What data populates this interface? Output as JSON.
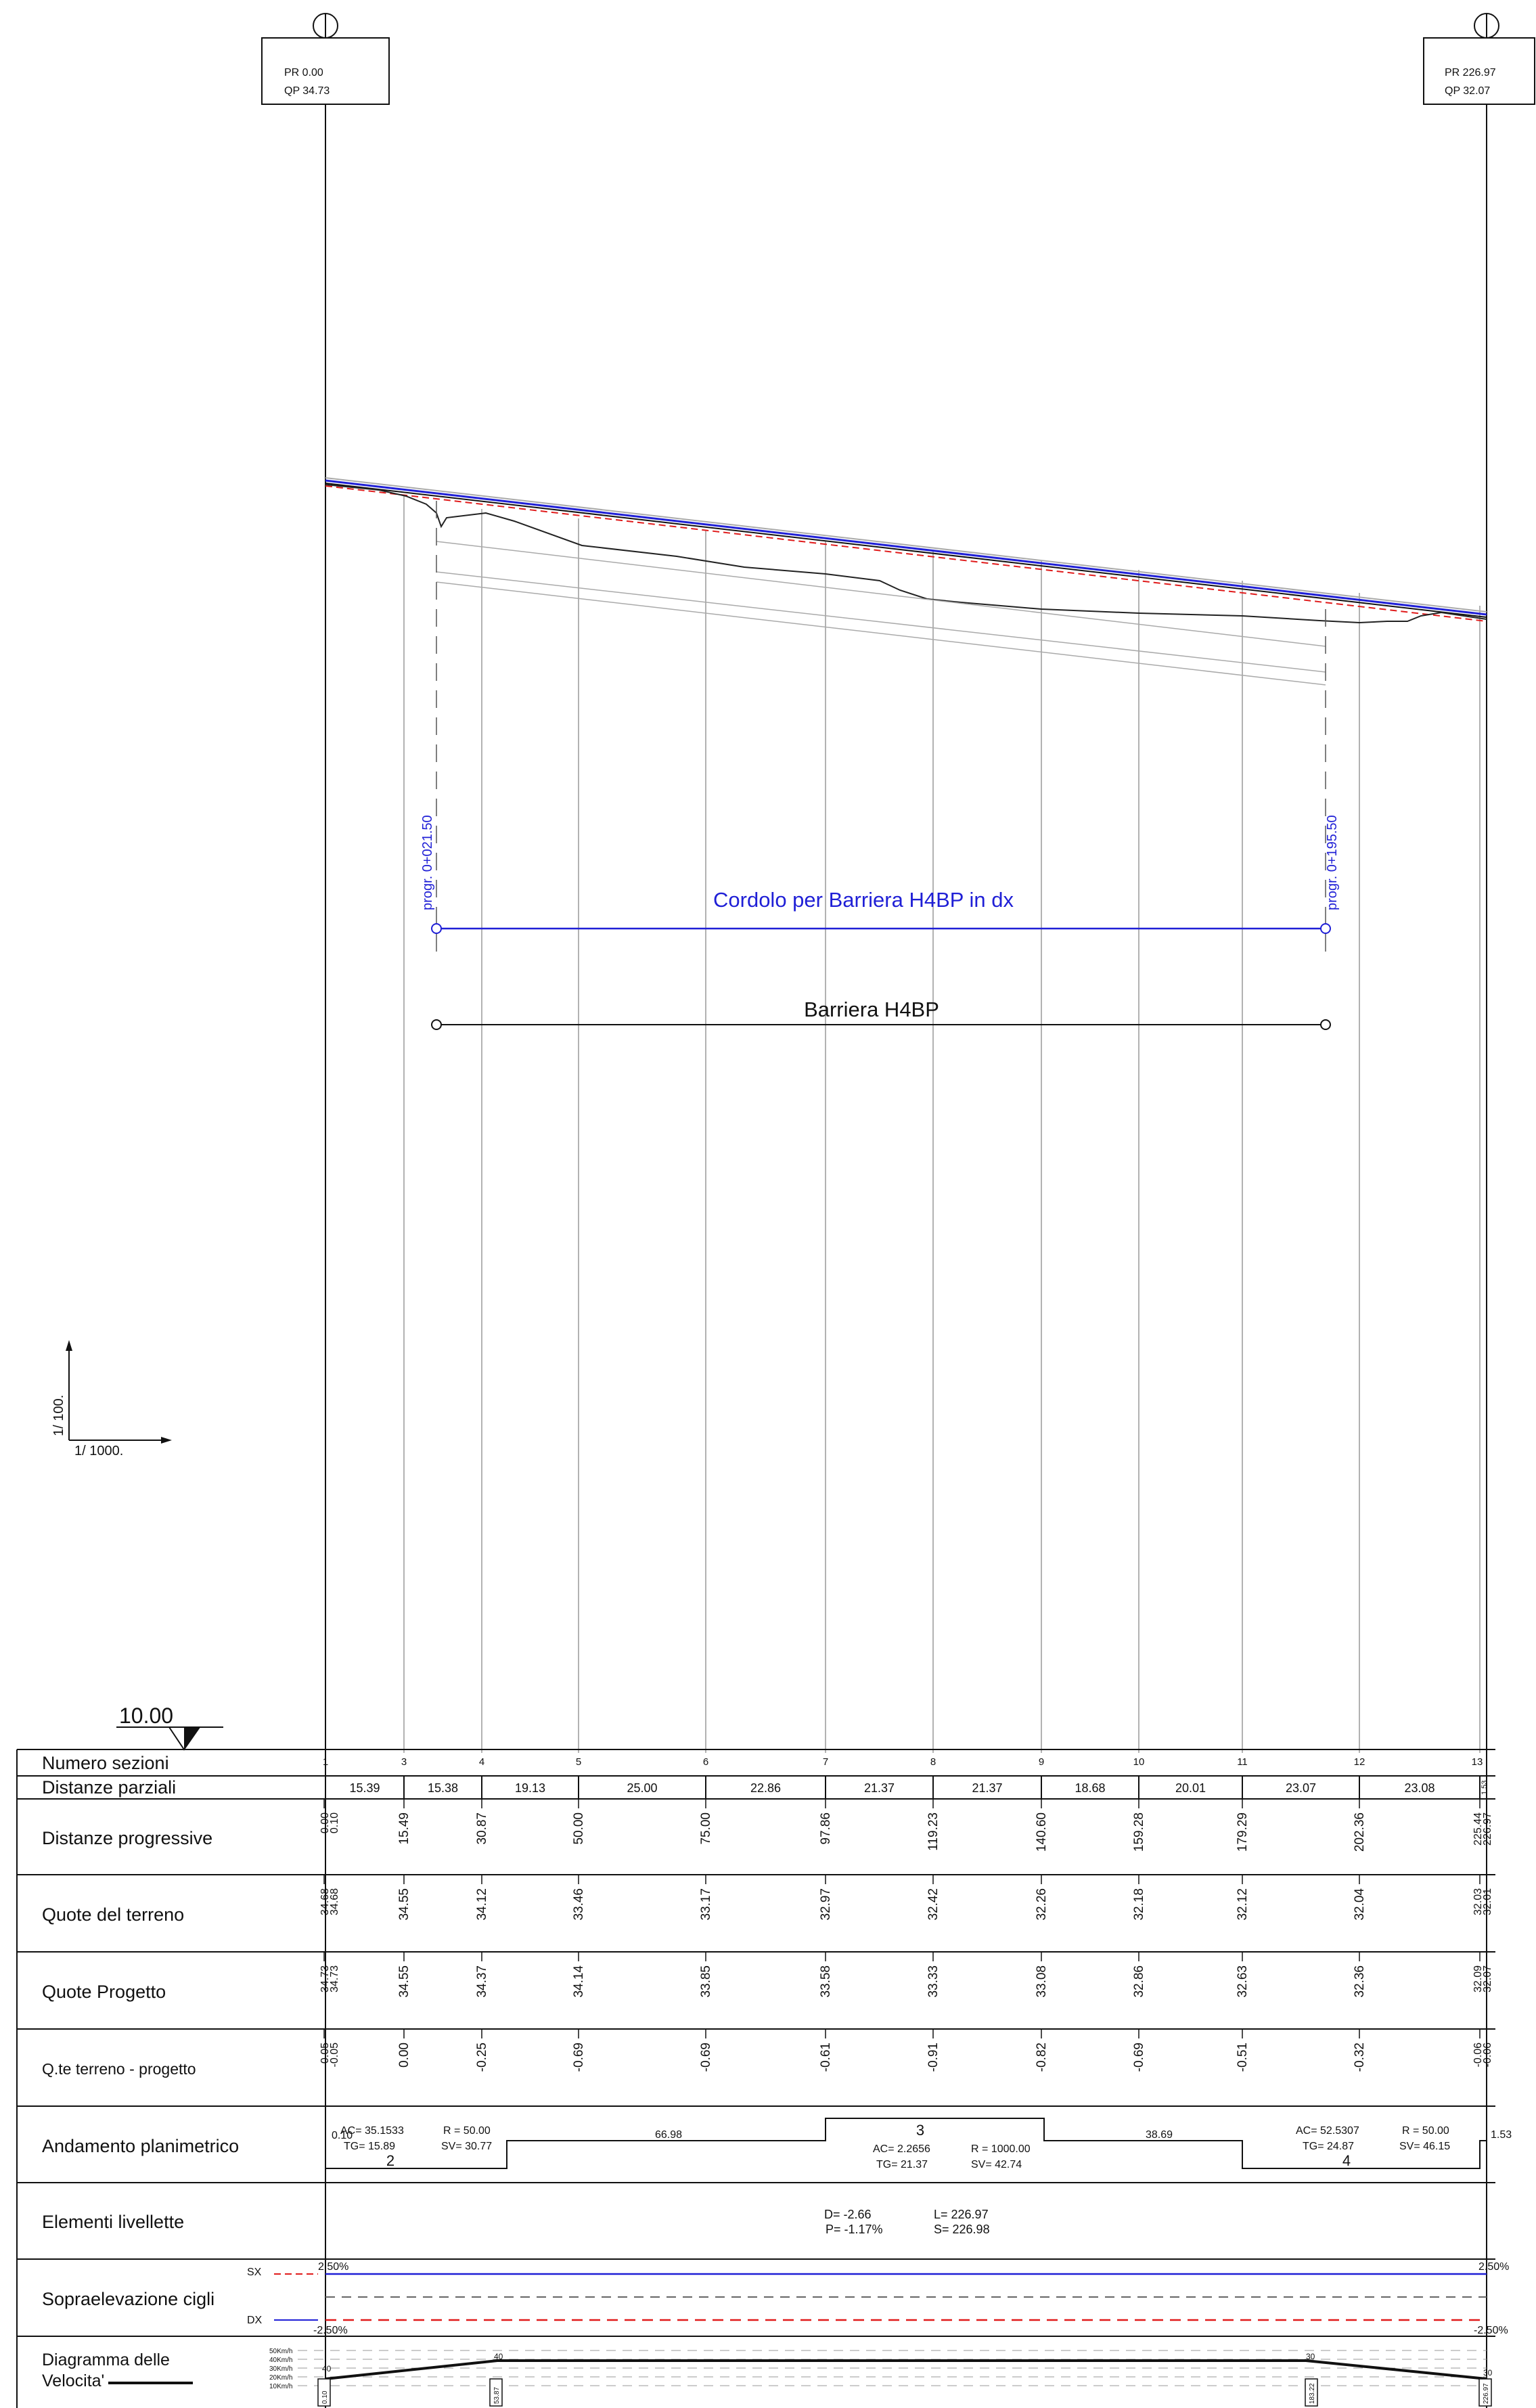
{
  "endpoints": {
    "left": {
      "pr": "PR   0.00",
      "qp": "QP  34.73"
    },
    "right": {
      "pr": "PR  226.97",
      "qp": "QP   32.07"
    }
  },
  "annotations": {
    "cordolo_label": "Cordolo per Barriera H4BP in dx",
    "barriera_label": "Barriera H4BP",
    "progr_start": "progr. 0+021.50",
    "progr_end": "progr. 0+195.50"
  },
  "scale": {
    "vertical": "1/  100.",
    "horizontal": "1/   1000."
  },
  "datum": "10.00",
  "colors": {
    "blue": "#1f1fd6",
    "red": "#e01b1b",
    "black": "#111111",
    "grey": "#999999"
  },
  "table": {
    "rows": {
      "numero_sezioni": "Numero sezioni",
      "distanze_parziali": "Distanze parziali",
      "distanze_progressive": "Distanze progressive",
      "quote_terreno": "Quote del terreno",
      "quote_progetto": "Quote Progetto",
      "terreno_progetto": "Q.te terreno - progetto",
      "andamento": "Andamento planimetrico",
      "livellette": "Elementi livellette",
      "sopraelevazione": "Sopraelevazione cigli",
      "diagramma_1": "Diagramma delle",
      "diagramma_2": "Velocita'"
    },
    "sections": [
      "1",
      "3",
      "4",
      "5",
      "6",
      "7",
      "8",
      "9",
      "10",
      "11",
      "12",
      "13"
    ],
    "partials": [
      "15.39",
      "15.38",
      "19.13",
      "25.00",
      "22.86",
      "21.37",
      "21.37",
      "18.68",
      "20.01",
      "23.07",
      "23.08",
      "1.53"
    ],
    "progressive": [
      "0.00",
      "0.10",
      "15.49",
      "30.87",
      "50.00",
      "75.00",
      "97.86",
      "119.23",
      "140.60",
      "159.28",
      "179.29",
      "202.36",
      "225.44",
      "226.97"
    ],
    "terreno": [
      "34.68",
      "34.68",
      "34.55",
      "34.12",
      "33.46",
      "33.17",
      "32.97",
      "32.42",
      "32.26",
      "32.18",
      "32.12",
      "32.04",
      "32.03",
      "32.01"
    ],
    "progetto": [
      "34.73",
      "34.73",
      "34.55",
      "34.37",
      "34.14",
      "33.85",
      "33.58",
      "33.33",
      "33.08",
      "32.86",
      "32.63",
      "32.36",
      "32.09",
      "32.07"
    ],
    "differenza": [
      "-0.05",
      "-0.05",
      "0.00",
      "-0.25",
      "-0.69",
      "-0.69",
      "-0.61",
      "-0.91",
      "-0.82",
      "-0.69",
      "-0.51",
      "-0.32",
      "-0.06",
      "-0.06"
    ],
    "curve2": {
      "ac": "AC= 35.1533",
      "tg": "TG=  15.89",
      "r": "R =  50.00",
      "sv": "SV=  30.77",
      "num": "2",
      "start": "0.10"
    },
    "straight1": "66.98",
    "curve3": {
      "num": "3",
      "ac": "AC=  2.2656",
      "tg": "TG=  21.37",
      "r": "R =  1000.00",
      "sv": "SV=   42.74"
    },
    "straight2": "38.69",
    "curve4": {
      "ac": "AC= 52.5307",
      "tg": "TG=  24.87",
      "r": "R =  50.00",
      "sv": "SV=  46.15",
      "num": "4"
    },
    "straight_end": "1.53",
    "livelletta": {
      "d": "D= -2.66",
      "p": "P= -1.17%",
      "l": "L=  226.97",
      "s": "S=  226.98"
    },
    "sopra": {
      "sx": "SX",
      "dx": "DX",
      "sx_left": "2.50%",
      "sx_right": "2.50%",
      "dx_left": "-2.50%",
      "dx_right": "-2.50%"
    },
    "speed_scale": [
      "50Km/h",
      "40Km/h",
      "30Km/h",
      "20Km/h",
      "10Km/h"
    ],
    "speed_marks": [
      "40",
      "40",
      "30",
      "30"
    ],
    "speed_boxes": [
      "0.10",
      "53.87",
      "183.22",
      "226.97"
    ]
  }
}
